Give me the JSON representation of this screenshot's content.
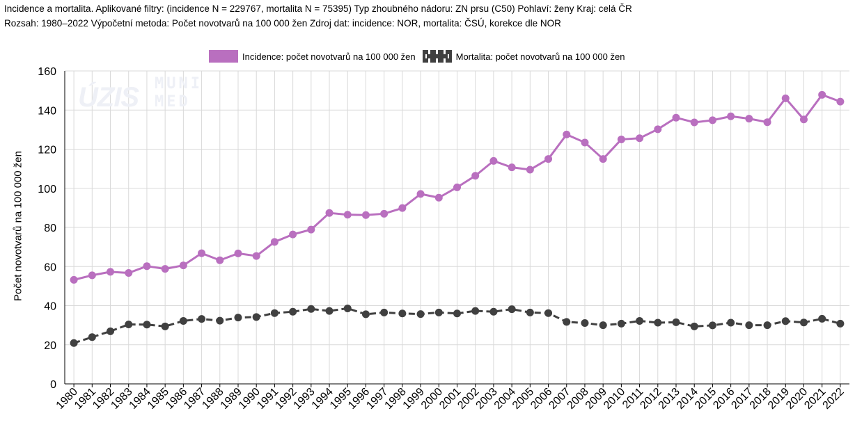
{
  "header": {
    "line1": "Incidence a mortalita. Aplikované filtry: (incidence N = 229767, mortalita N = 75395) Typ zhoubného nádoru: ZN prsu (C50) Pohlaví: ženy Kraj: celá ČR",
    "line2": "Rozsah: 1980–2022 Výpočetní metoda: Počet novotvarů na 100 000 žen Zdroj dat: incidence: NOR, mortalita: ČSÚ, korekce dle NOR"
  },
  "watermarks": {
    "uzis": "ÚZIS",
    "muni_top": "MUNI",
    "muni_bottom": "MED"
  },
  "colors": {
    "incidence": "#b96fbf",
    "mortalita": "#404040",
    "grid": "#d9d9d9",
    "axis": "#000000"
  },
  "chart_data": {
    "type": "line",
    "ylabel": "Počet novotvarů na 100 000 žen",
    "xlabel": "",
    "ylim": [
      0,
      160
    ],
    "yticks": [
      0,
      20,
      40,
      60,
      80,
      100,
      120,
      140,
      160
    ],
    "grid": true,
    "legend_position": "top",
    "categories": [
      "1980",
      "1981",
      "1982",
      "1983",
      "1984",
      "1985",
      "1986",
      "1987",
      "1988",
      "1989",
      "1990",
      "1991",
      "1992",
      "1993",
      "1994",
      "1995",
      "1996",
      "1997",
      "1998",
      "1999",
      "2000",
      "2001",
      "2002",
      "2003",
      "2004",
      "2005",
      "2006",
      "2007",
      "2008",
      "2009",
      "2010",
      "2011",
      "2012",
      "2013",
      "2014",
      "2015",
      "2016",
      "2017",
      "2018",
      "2019",
      "2020",
      "2021",
      "2022"
    ],
    "series": [
      {
        "name": "Incidence: počet novotvarů na 100 000 žen",
        "style": "solid",
        "values": [
          53.2,
          55.5,
          57.3,
          56.7,
          60.2,
          58.8,
          60.6,
          66.8,
          63.2,
          66.7,
          65.4,
          72.6,
          76.4,
          78.9,
          87.4,
          86.5,
          86.3,
          87.0,
          89.9,
          97.1,
          95.2,
          100.5,
          106.4,
          114.0,
          110.7,
          109.5,
          115.0,
          127.5,
          123.4,
          115.0,
          125.0,
          125.6,
          130.2,
          136.1,
          133.7,
          134.8,
          136.8,
          135.6,
          133.8,
          146.0,
          135.2,
          147.8,
          144.3
        ]
      },
      {
        "name": "Mortalita: počet novotvarů na 100 000 žen",
        "style": "dashed",
        "values": [
          20.9,
          23.9,
          26.9,
          30.4,
          30.3,
          29.4,
          32.2,
          33.2,
          32.3,
          33.9,
          34.2,
          36.2,
          36.9,
          38.3,
          37.3,
          38.6,
          35.6,
          36.5,
          36.0,
          35.7,
          36.5,
          36.0,
          37.3,
          36.9,
          38.2,
          36.5,
          36.2,
          31.7,
          31.1,
          30.0,
          30.8,
          32.2,
          31.3,
          31.5,
          29.4,
          29.9,
          31.3,
          30.0,
          30.0,
          32.1,
          31.4,
          33.3,
          30.8
        ]
      }
    ]
  }
}
